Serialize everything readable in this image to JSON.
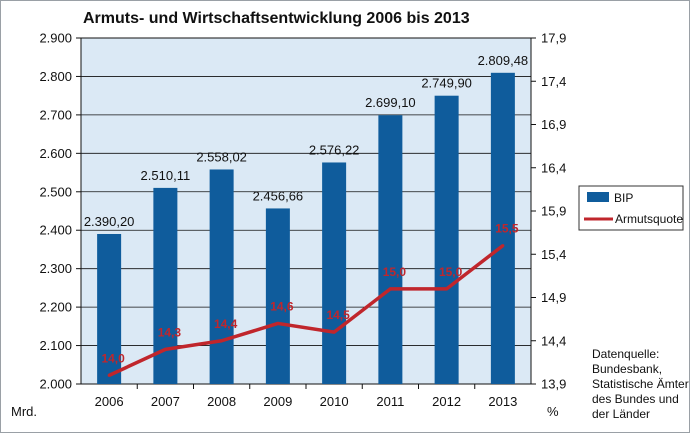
{
  "chart_data": {
    "type": "bar",
    "title": "Armuts- und Wirtschaftsentwicklung 2006 bis 2013",
    "categories": [
      "2006",
      "2007",
      "2008",
      "2009",
      "2010",
      "2011",
      "2012",
      "2013"
    ],
    "series": [
      {
        "name": "BIP",
        "type": "bar",
        "axis": "left",
        "color": "#0f5c9c",
        "values": [
          2390.2,
          2510.11,
          2558.02,
          2456.66,
          2576.22,
          2699.1,
          2749.9,
          2809.48
        ],
        "labels": [
          "2.390,20",
          "2.510,11",
          "2.558,02",
          "2.456,66",
          "2.576,22",
          "2.699,10",
          "2.749,90",
          "2.809,48"
        ]
      },
      {
        "name": "Armutsquote",
        "type": "line",
        "axis": "right",
        "color": "#c0262c",
        "values": [
          14.0,
          14.3,
          14.4,
          14.6,
          14.5,
          15.0,
          15.0,
          15.5
        ],
        "labels": [
          "14,0",
          "14,3",
          "14,4",
          "14,6",
          "14,5",
          "15,0",
          "15,0",
          "15,5"
        ]
      }
    ],
    "y_left": {
      "unit_label": "Mrd.",
      "ylim": [
        2000,
        2900
      ],
      "ticks": [
        "2.000",
        "2.100",
        "2.200",
        "2.300",
        "2.400",
        "2.500",
        "2.600",
        "2.700",
        "2.800",
        "2.900"
      ]
    },
    "y_right": {
      "unit_label": "%",
      "ylim": [
        13.9,
        17.9
      ],
      "ticks": [
        "13,9",
        "14,4",
        "14,9",
        "15,4",
        "15,9",
        "16,4",
        "16,9",
        "17,4",
        "17,9"
      ]
    },
    "grid": true,
    "legend": "right",
    "plot_background": "#dbe9f5",
    "source_note": [
      "Datenquelle:",
      "Bundesbank,",
      "Statistische Ämter",
      "des Bundes und",
      "der Länder"
    ]
  }
}
